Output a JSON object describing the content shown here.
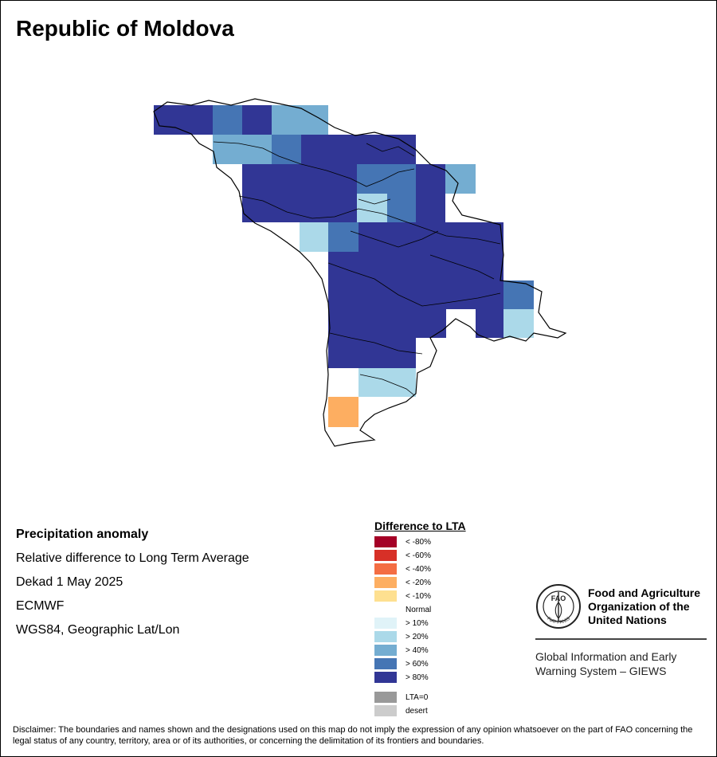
{
  "title": "Republic of Moldova",
  "info": {
    "heading": "Precipitation anomaly",
    "line1": "Relative difference to Long Term Average",
    "line2": "Dekad 1 May 2025",
    "line3": "ECMWF",
    "line4": "WGS84, Geographic Lat/Lon"
  },
  "legend": {
    "title": "Difference to LTA",
    "items": [
      {
        "label": "< -80%",
        "color": "#a50026"
      },
      {
        "label": "< -60%",
        "color": "#d73027"
      },
      {
        "label": "< -40%",
        "color": "#f46d43"
      },
      {
        "label": "< -20%",
        "color": "#fdae61"
      },
      {
        "label": "< -10%",
        "color": "#fee090"
      },
      {
        "label": "Normal",
        "color": "#ffffff"
      },
      {
        "label": "> 10%",
        "color": "#e0f3f8"
      },
      {
        "label": "> 20%",
        "color": "#abd9e9"
      },
      {
        "label": "> 40%",
        "color": "#74add1"
      },
      {
        "label": "> 60%",
        "color": "#4575b4"
      },
      {
        "label": "> 80%",
        "color": "#313695"
      }
    ],
    "extra": [
      {
        "label": "LTA=0",
        "color": "#999999"
      },
      {
        "label": "desert",
        "color": "#cccccc"
      }
    ]
  },
  "fao": {
    "name_line1": "Food and Agriculture",
    "name_line2": "Organization of the",
    "name_line3": "United Nations",
    "logo_letters": "FAO",
    "logo_motto": "FIAT PANIS",
    "giews_line1": "Global Information and Early",
    "giews_line2": "Warning System – GIEWS"
  },
  "disclaimer": "Disclaimer: The boundaries and names shown and the designations used on this map do not imply the expression of any opinion whatsoever on the part of FAO concerning the legal status of any country, territory, area or of its authorities, or concerning the delimitation of its frontiers and boundaries."
}
